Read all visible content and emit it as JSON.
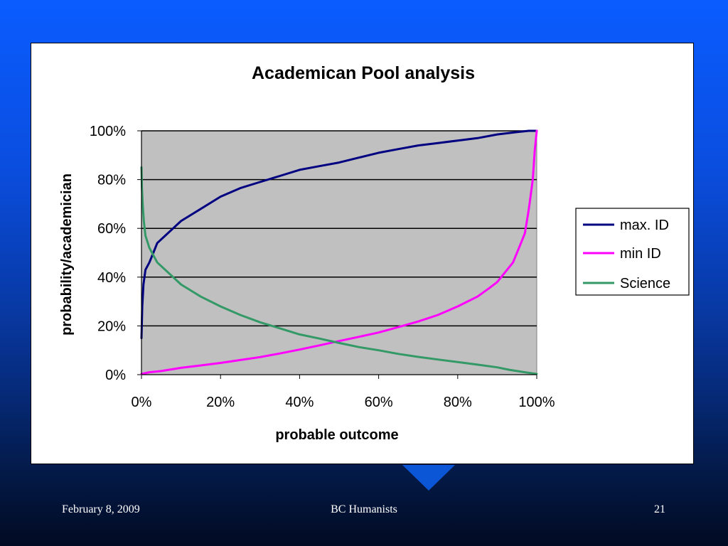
{
  "slide": {
    "footer_date": "February 8, 2009",
    "footer_title": "BC Humanists",
    "page_number": "21"
  },
  "colors": {
    "background_top": "#0a5cff",
    "background_bottom": "#010a22",
    "plot_area": "#c0c0c0",
    "max_id": "#000080",
    "min_id": "#ff00ff",
    "science": "#339966"
  },
  "chart_data": {
    "type": "line",
    "title": "Academican Pool analysis",
    "xlabel": "probable outcome",
    "ylabel": "probability/academician",
    "xlim": [
      0,
      100
    ],
    "ylim": [
      0,
      100
    ],
    "x_ticks": [
      "0%",
      "20%",
      "40%",
      "60%",
      "80%",
      "100%"
    ],
    "y_ticks": [
      "0%",
      "20%",
      "40%",
      "60%",
      "80%",
      "100%"
    ],
    "grid": "horizontal",
    "legend_position": "right",
    "series": [
      {
        "name": "max. ID",
        "color": "#000080",
        "x": [
          0,
          0.2,
          0.5,
          1,
          2,
          3,
          4,
          6,
          8,
          10,
          13,
          15,
          20,
          25,
          30,
          35,
          40,
          45,
          50,
          55,
          60,
          65,
          70,
          75,
          80,
          85,
          90,
          95,
          98,
          100
        ],
        "y": [
          15,
          28,
          37,
          43,
          46,
          50,
          54,
          57,
          60,
          63,
          66,
          68,
          73,
          76.5,
          79,
          81.5,
          84,
          85.5,
          87,
          89,
          91,
          92.5,
          94,
          95,
          96,
          97,
          98.5,
          99.5,
          100,
          100
        ]
      },
      {
        "name": "min ID",
        "color": "#ff00ff",
        "x": [
          0,
          2,
          5,
          10,
          15,
          20,
          25,
          30,
          35,
          40,
          45,
          50,
          55,
          60,
          65,
          70,
          75,
          80,
          85,
          88,
          90,
          92,
          94,
          96,
          97,
          98,
          99,
          99.5,
          100
        ],
        "y": [
          0.3,
          1,
          1.5,
          2.8,
          3.8,
          4.8,
          6,
          7.2,
          8.7,
          10.3,
          12,
          13.8,
          15.5,
          17.3,
          19.5,
          21.8,
          24.5,
          28,
          32,
          35.5,
          38,
          42,
          46,
          54,
          58,
          68,
          80,
          92,
          100
        ]
      },
      {
        "name": "Science",
        "color": "#339966",
        "x": [
          0,
          0.1,
          0.3,
          0.6,
          1,
          2,
          4,
          6,
          8,
          10,
          13,
          15,
          20,
          25,
          30,
          35,
          40,
          45,
          50,
          55,
          60,
          65,
          70,
          75,
          80,
          85,
          90,
          93,
          95,
          97,
          100
        ],
        "y": [
          85,
          77,
          70,
          63,
          57,
          52,
          46,
          43,
          40,
          37,
          34,
          32,
          28,
          24.5,
          21.5,
          19,
          16.5,
          14.8,
          13,
          11.3,
          10,
          8.5,
          7.3,
          6.2,
          5.2,
          4.1,
          3,
          2,
          1.5,
          1,
          0.3
        ]
      }
    ]
  }
}
